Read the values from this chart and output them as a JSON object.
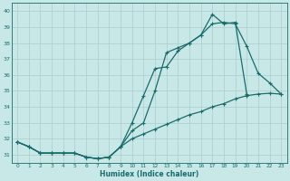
{
  "xlabel": "Humidex (Indice chaleur)",
  "background_color": "#c8e8e8",
  "grid_color": "#aacccc",
  "line_color": "#1a6b6b",
  "xlim": [
    -0.5,
    23.5
  ],
  "ylim": [
    30.5,
    40.5
  ],
  "yticks": [
    31,
    32,
    33,
    34,
    35,
    36,
    37,
    38,
    39,
    40
  ],
  "xticks": [
    0,
    1,
    2,
    3,
    4,
    5,
    6,
    7,
    8,
    9,
    10,
    11,
    12,
    13,
    14,
    15,
    16,
    17,
    18,
    19,
    20,
    21,
    22,
    23
  ],
  "series": [
    {
      "x": [
        0,
        1,
        2,
        3,
        4,
        5,
        6,
        7,
        8,
        9,
        10,
        11,
        12,
        13,
        14,
        15,
        16,
        17,
        18,
        19,
        20,
        21,
        22,
        23
      ],
      "y": [
        31.8,
        31.5,
        31.1,
        31.1,
        31.1,
        31.1,
        30.85,
        30.75,
        30.85,
        31.5,
        33.0,
        34.7,
        36.4,
        36.5,
        37.5,
        38.0,
        38.5,
        39.8,
        39.2,
        39.3,
        34.8,
        null,
        null,
        null
      ]
    },
    {
      "x": [
        0,
        1,
        2,
        3,
        4,
        5,
        6,
        7,
        8,
        9,
        10,
        11,
        12,
        13,
        14,
        15,
        16,
        17,
        18,
        19,
        20,
        21,
        22,
        23
      ],
      "y": [
        31.8,
        31.5,
        31.1,
        31.1,
        31.1,
        31.1,
        30.85,
        30.75,
        30.85,
        31.5,
        32.5,
        33.0,
        35.0,
        37.4,
        37.7,
        38.0,
        38.5,
        39.2,
        39.3,
        39.2,
        37.8,
        36.1,
        35.5,
        34.8
      ]
    },
    {
      "x": [
        0,
        1,
        2,
        3,
        4,
        5,
        6,
        7,
        8,
        9,
        10,
        11,
        12,
        13,
        14,
        15,
        16,
        17,
        18,
        19,
        20,
        21,
        22,
        23
      ],
      "y": [
        31.8,
        31.5,
        31.1,
        31.1,
        31.1,
        31.1,
        30.85,
        30.75,
        30.85,
        31.5,
        32.0,
        32.3,
        32.6,
        32.9,
        33.2,
        33.5,
        33.7,
        34.0,
        34.2,
        34.5,
        34.7,
        34.8,
        34.85,
        34.8
      ]
    }
  ]
}
